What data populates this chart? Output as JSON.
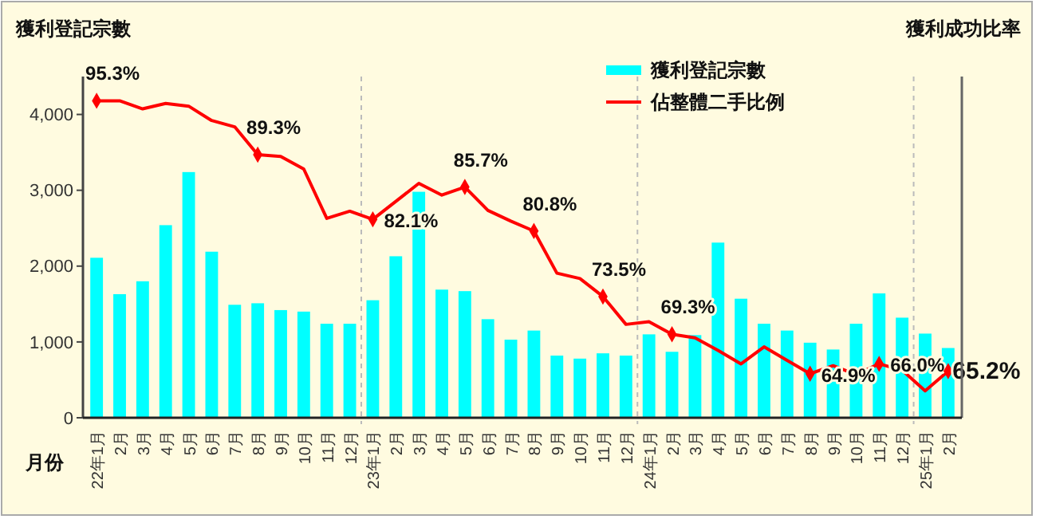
{
  "chart_data": {
    "type": "bar",
    "ylabel": "獲利登記宗數",
    "y2label": "獲利成功比率",
    "xlabel": "月份",
    "categories": [
      "22年1月",
      "2月",
      "3月",
      "4月",
      "5月",
      "6月",
      "7月",
      "8月",
      "9月",
      "10月",
      "11月",
      "12月",
      "23年1月",
      "2月",
      "3月",
      "4月",
      "5月",
      "6月",
      "7月",
      "8月",
      "9月",
      "10月",
      "11月",
      "12月",
      "24年1月",
      "2月",
      "3月",
      "4月",
      "5月",
      "6月",
      "7月",
      "8月",
      "9月",
      "10月",
      "11月",
      "12月",
      "25年1月",
      "2月"
    ],
    "series": [
      {
        "name": "獲利登記宗數",
        "color": "#00ffff",
        "values": [
          2110,
          1630,
          1800,
          2540,
          3240,
          2190,
          1490,
          1510,
          1420,
          1400,
          1240,
          1240,
          1550,
          2130,
          2980,
          1690,
          1670,
          1300,
          1030,
          1150,
          820,
          780,
          850,
          820,
          1100,
          870,
          1090,
          2310,
          1570,
          1240,
          1150,
          990,
          900,
          1240,
          1640,
          1320,
          1110,
          920
        ]
      },
      {
        "name": "佔整體二手比例",
        "type": "line",
        "axis": "y2",
        "color": "#ff0000",
        "values": [
          95.3,
          95.3,
          94.4,
          95.0,
          94.7,
          93.1,
          92.4,
          89.3,
          89.1,
          87.7,
          82.2,
          83.0,
          82.1,
          84.1,
          86.1,
          84.8,
          85.7,
          83.1,
          81.9,
          80.8,
          76.1,
          75.5,
          73.5,
          70.4,
          70.7,
          69.3,
          68.9,
          67.5,
          66.0,
          67.9,
          66.4,
          64.9,
          65.8,
          64.8,
          66.0,
          65.3,
          63.0,
          65.2
        ],
        "value_labels": [
          "95.3%",
          null,
          null,
          null,
          null,
          null,
          null,
          "89.3%",
          null,
          null,
          null,
          null,
          "82.1%",
          null,
          null,
          null,
          "85.7%",
          null,
          null,
          "80.8%",
          null,
          null,
          "73.5%",
          null,
          null,
          "69.3%",
          null,
          null,
          null,
          null,
          null,
          "64.9%",
          null,
          null,
          "66.0%",
          null,
          null,
          "65.2%"
        ]
      }
    ],
    "ylim": [
      0,
      4500
    ],
    "yticks": [
      {
        "value": 0,
        "label": "0"
      },
      {
        "value": 1000,
        "label": "1,000"
      },
      {
        "value": 2000,
        "label": "2,000"
      },
      {
        "value": 3000,
        "label": "3,000"
      },
      {
        "value": 4000,
        "label": "4,000"
      }
    ],
    "y2lim": [
      60,
      98
    ],
    "grid": "x",
    "legend": "top"
  }
}
